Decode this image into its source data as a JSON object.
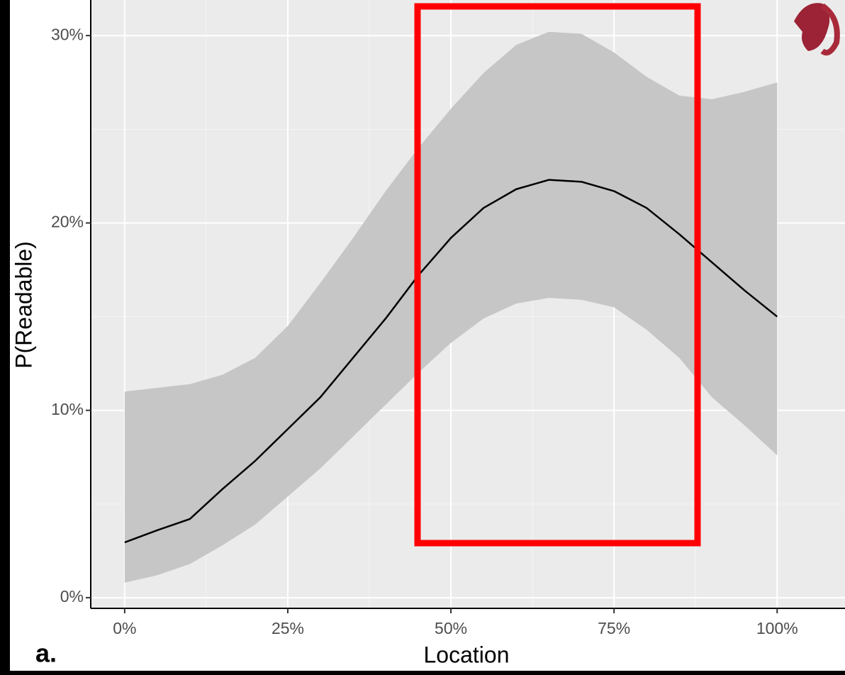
{
  "chart_data": {
    "type": "line",
    "panel_label": "a.",
    "x_label": "Location",
    "y_label": "P(Readable)",
    "x": [
      0,
      5,
      10,
      15,
      20,
      25,
      30,
      35,
      40,
      45,
      50,
      55,
      60,
      65,
      70,
      75,
      80,
      85,
      90,
      95,
      100
    ],
    "values": [
      2.95,
      3.6,
      4.2,
      5.8,
      7.3,
      9.0,
      10.7,
      12.8,
      14.9,
      17.2,
      19.2,
      20.8,
      21.8,
      22.3,
      22.2,
      21.7,
      20.8,
      19.4,
      17.9,
      16.4,
      15.0
    ],
    "upper": [
      11.0,
      11.2,
      11.4,
      11.9,
      12.8,
      14.5,
      16.8,
      19.2,
      21.7,
      24.0,
      26.1,
      28.0,
      29.5,
      30.2,
      30.1,
      29.1,
      27.8,
      26.8,
      26.6,
      27.0,
      27.5
    ],
    "lower": [
      0.8,
      1.2,
      1.8,
      2.8,
      3.9,
      5.4,
      6.9,
      8.6,
      10.3,
      12.0,
      13.6,
      14.9,
      15.7,
      16.0,
      15.9,
      15.5,
      14.3,
      12.8,
      10.7,
      9.2,
      7.6
    ],
    "line_color": "#000000",
    "band_color": "#c6c6c6",
    "xlim": [
      -5.2,
      110.4
    ],
    "ylim": [
      -0.57,
      31.9
    ],
    "xticks": [
      {
        "value": 0,
        "label": "0%"
      },
      {
        "value": 25,
        "label": "25%"
      },
      {
        "value": 50,
        "label": "50%"
      },
      {
        "value": 75,
        "label": "75%"
      },
      {
        "value": 100,
        "label": "100%"
      }
    ],
    "yticks": [
      {
        "value": 0,
        "label": "0%"
      },
      {
        "value": 10,
        "label": "10%"
      },
      {
        "value": 20,
        "label": "20%"
      },
      {
        "value": 30,
        "label": "30%"
      }
    ],
    "x_minor_grid": [
      12.5,
      37.5,
      62.5,
      87.5
    ],
    "y_minor_grid": [
      5,
      15,
      25
    ],
    "grid": true
  }
}
